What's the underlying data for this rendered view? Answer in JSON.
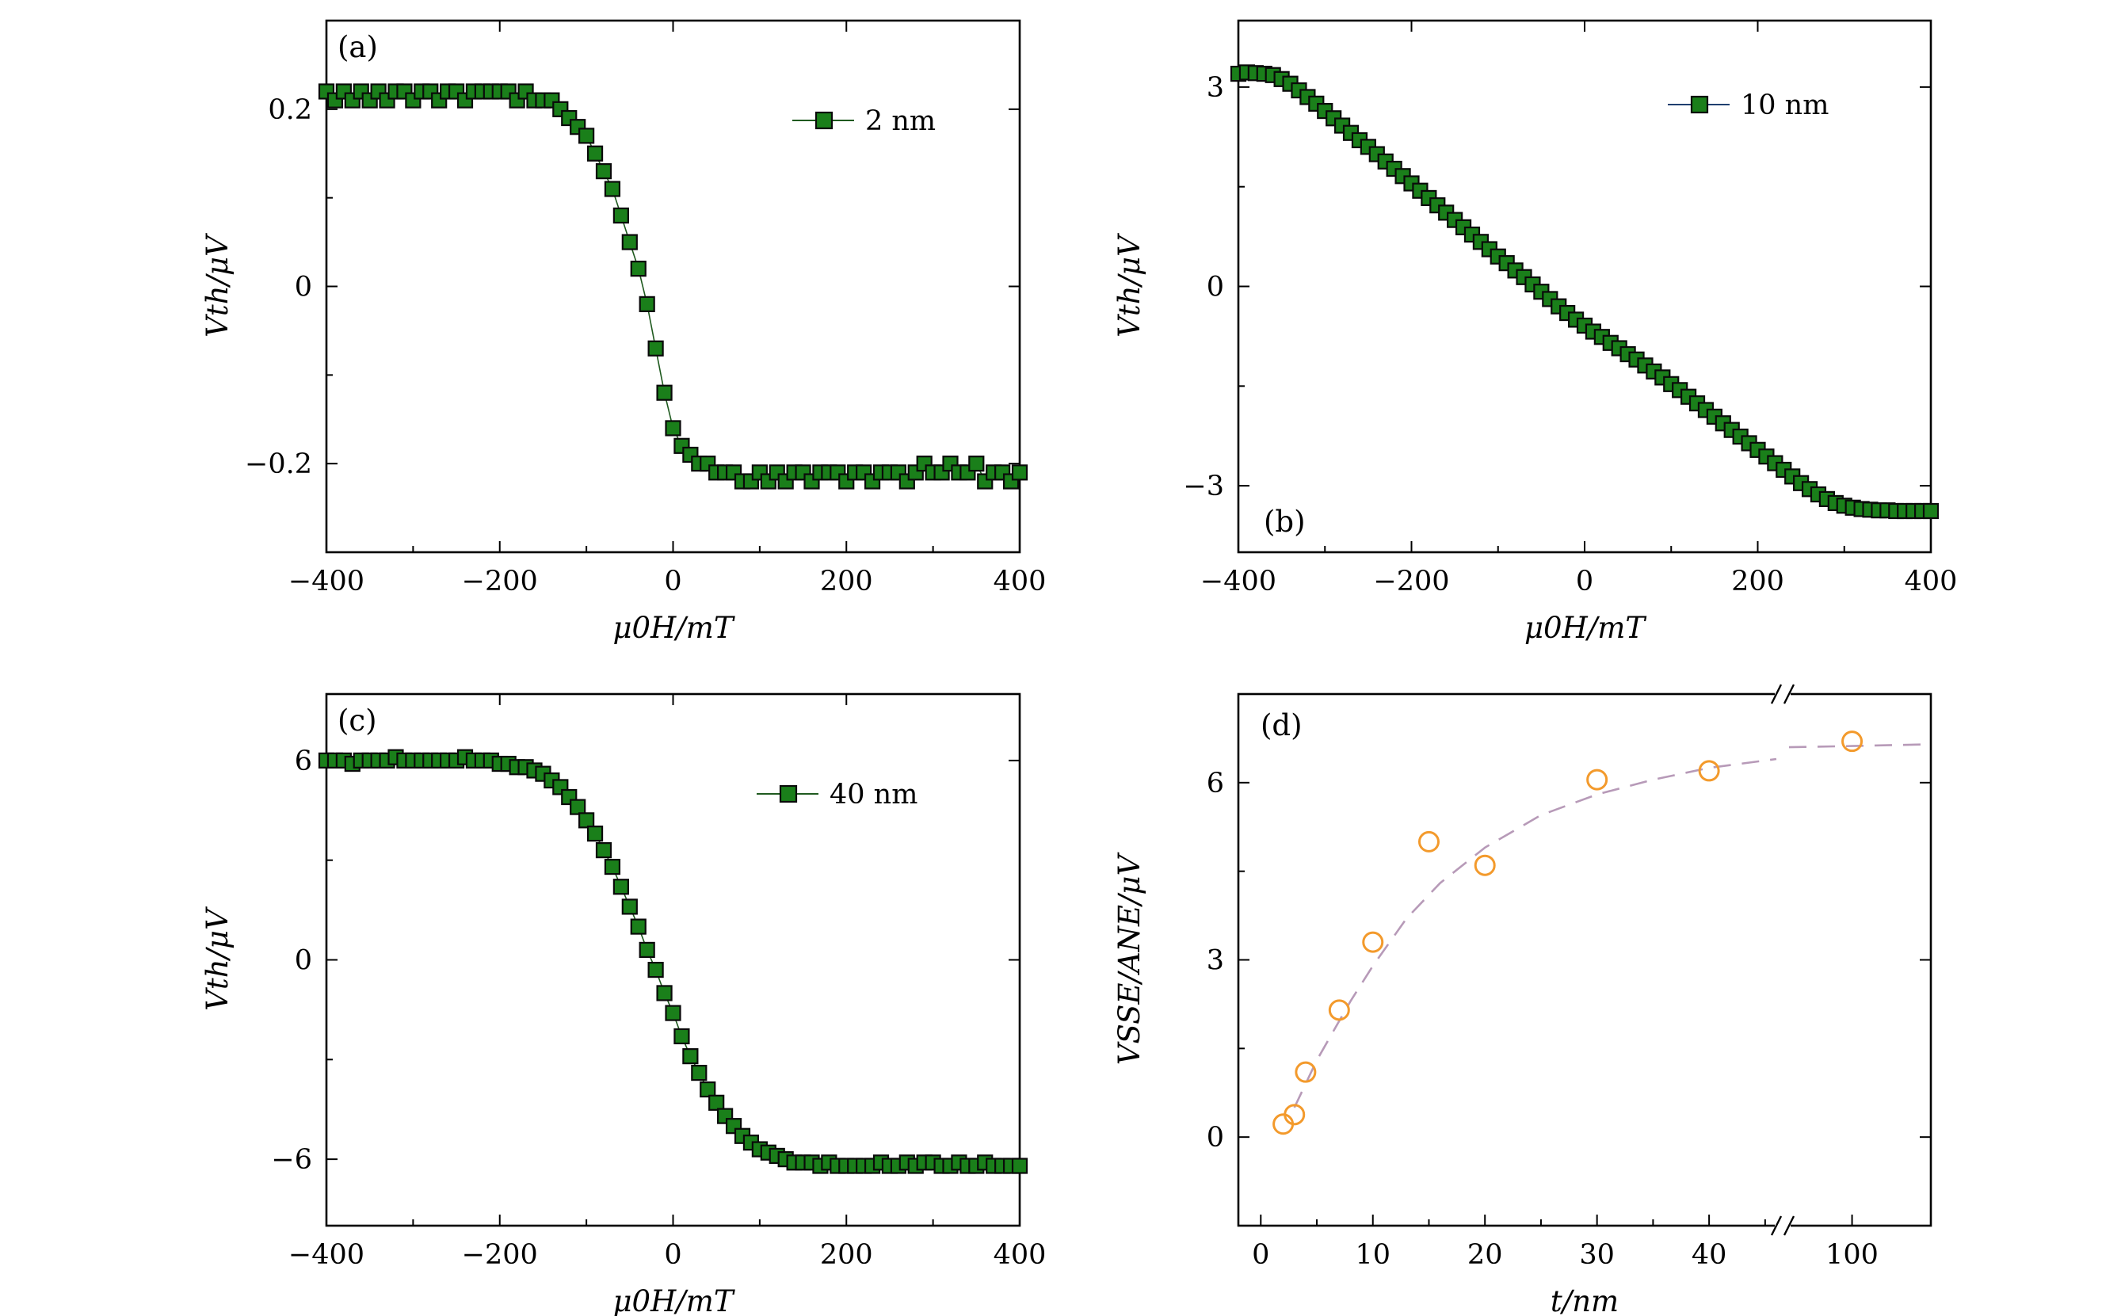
{
  "chart_data": [
    {
      "type": "line",
      "panel_label": "(a)",
      "xlabel": "μ0H/mT",
      "ylabel": "Vth/μV",
      "xlim": [
        -400,
        400
      ],
      "ylim": [
        -0.3,
        0.3
      ],
      "xticks": [
        -400,
        -200,
        0,
        200,
        400
      ],
      "xtick_labels": [
        "−400",
        "−200",
        "0",
        "200",
        "400"
      ],
      "yticks": [
        -0.2,
        0,
        0.2
      ],
      "ytick_labels": [
        "−0.2",
        "0",
        "0.2"
      ],
      "legend_position": "top-right",
      "line_color": "#1f5a1f",
      "marker_color": "#1a7f1a",
      "series": [
        {
          "name": "2 nm",
          "x": [
            -400,
            -390,
            -380,
            -370,
            -360,
            -350,
            -340,
            -330,
            -320,
            -310,
            -300,
            -290,
            -280,
            -270,
            -260,
            -250,
            -240,
            -230,
            -220,
            -210,
            -200,
            -190,
            -180,
            -170,
            -160,
            -150,
            -140,
            -130,
            -120,
            -110,
            -100,
            -90,
            -80,
            -70,
            -60,
            -50,
            -40,
            -30,
            -20,
            -10,
            0,
            10,
            20,
            30,
            40,
            50,
            60,
            70,
            80,
            90,
            100,
            110,
            120,
            130,
            140,
            150,
            160,
            170,
            180,
            190,
            200,
            210,
            220,
            230,
            240,
            250,
            260,
            270,
            280,
            290,
            300,
            310,
            320,
            330,
            340,
            350,
            360,
            370,
            380,
            390,
            400
          ],
          "y": [
            0.22,
            0.21,
            0.22,
            0.21,
            0.22,
            0.21,
            0.22,
            0.21,
            0.22,
            0.22,
            0.21,
            0.22,
            0.22,
            0.21,
            0.22,
            0.22,
            0.21,
            0.22,
            0.22,
            0.22,
            0.22,
            0.22,
            0.21,
            0.22,
            0.21,
            0.21,
            0.21,
            0.2,
            0.19,
            0.18,
            0.17,
            0.15,
            0.13,
            0.11,
            0.08,
            0.05,
            0.02,
            -0.02,
            -0.07,
            -0.12,
            -0.16,
            -0.18,
            -0.19,
            -0.2,
            -0.2,
            -0.21,
            -0.21,
            -0.21,
            -0.22,
            -0.22,
            -0.21,
            -0.22,
            -0.21,
            -0.22,
            -0.21,
            -0.21,
            -0.22,
            -0.21,
            -0.21,
            -0.21,
            -0.22,
            -0.21,
            -0.21,
            -0.22,
            -0.21,
            -0.21,
            -0.21,
            -0.22,
            -0.21,
            -0.2,
            -0.21,
            -0.21,
            -0.2,
            -0.21,
            -0.21,
            -0.2,
            -0.22,
            -0.21,
            -0.21,
            -0.22,
            -0.21
          ]
        }
      ]
    },
    {
      "type": "line",
      "panel_label": "(b)",
      "xlabel": "μ0H/mT",
      "ylabel": "Vth/μV",
      "xlim": [
        -400,
        400
      ],
      "ylim": [
        -4,
        4
      ],
      "xticks": [
        -400,
        -200,
        0,
        200,
        400
      ],
      "xtick_labels": [
        "−400",
        "−200",
        "0",
        "200",
        "400"
      ],
      "yticks": [
        -3,
        0,
        3
      ],
      "ytick_labels": [
        "−3",
        "0",
        "3"
      ],
      "legend_position": "top-right",
      "line_color": "#1f3f6f",
      "marker_color": "#1a7f1a",
      "series": [
        {
          "name": "10 nm",
          "x": [
            -400,
            -390,
            -380,
            -370,
            -360,
            -350,
            -340,
            -330,
            -320,
            -310,
            -300,
            -290,
            -280,
            -270,
            -260,
            -250,
            -240,
            -230,
            -220,
            -210,
            -200,
            -190,
            -180,
            -170,
            -160,
            -150,
            -140,
            -130,
            -120,
            -110,
            -100,
            -90,
            -80,
            -70,
            -60,
            -50,
            -40,
            -30,
            -20,
            -10,
            0,
            10,
            20,
            30,
            40,
            50,
            60,
            70,
            80,
            90,
            100,
            110,
            120,
            130,
            140,
            150,
            160,
            170,
            180,
            190,
            200,
            210,
            220,
            230,
            240,
            250,
            260,
            270,
            280,
            290,
            300,
            310,
            320,
            330,
            340,
            350,
            360,
            370,
            380,
            390,
            400
          ],
          "y": [
            3.2,
            3.22,
            3.21,
            3.2,
            3.18,
            3.12,
            3.05,
            2.95,
            2.85,
            2.75,
            2.64,
            2.53,
            2.42,
            2.31,
            2.2,
            2.1,
            1.99,
            1.88,
            1.77,
            1.66,
            1.55,
            1.44,
            1.33,
            1.22,
            1.11,
            1.0,
            0.89,
            0.78,
            0.67,
            0.56,
            0.45,
            0.35,
            0.24,
            0.14,
            0.03,
            -0.08,
            -0.19,
            -0.3,
            -0.4,
            -0.5,
            -0.59,
            -0.68,
            -0.76,
            -0.85,
            -0.93,
            -1.02,
            -1.1,
            -1.19,
            -1.28,
            -1.37,
            -1.47,
            -1.56,
            -1.66,
            -1.76,
            -1.86,
            -1.96,
            -2.06,
            -2.16,
            -2.26,
            -2.36,
            -2.46,
            -2.56,
            -2.66,
            -2.76,
            -2.86,
            -2.96,
            -3.05,
            -3.13,
            -3.2,
            -3.26,
            -3.3,
            -3.33,
            -3.35,
            -3.36,
            -3.37,
            -3.37,
            -3.38,
            -3.38,
            -3.38,
            -3.38,
            -3.38
          ]
        }
      ]
    },
    {
      "type": "line",
      "panel_label": "(c)",
      "xlabel": "μ0H/mT",
      "ylabel": "Vth/μV",
      "xlim": [
        -400,
        400
      ],
      "ylim": [
        -8,
        8
      ],
      "xticks": [
        -400,
        -200,
        0,
        200,
        400
      ],
      "xtick_labels": [
        "−400",
        "−200",
        "0",
        "200",
        "400"
      ],
      "yticks": [
        -6,
        0,
        6
      ],
      "ytick_labels": [
        "−6",
        "0",
        "6"
      ],
      "legend_position": "top-right",
      "line_color": "#1f5a1f",
      "marker_color": "#1a7f1a",
      "series": [
        {
          "name": "40 nm",
          "x": [
            -400,
            -390,
            -380,
            -370,
            -360,
            -350,
            -340,
            -330,
            -320,
            -310,
            -300,
            -290,
            -280,
            -270,
            -260,
            -250,
            -240,
            -230,
            -220,
            -210,
            -200,
            -190,
            -180,
            -170,
            -160,
            -150,
            -140,
            -130,
            -120,
            -110,
            -100,
            -90,
            -80,
            -70,
            -60,
            -50,
            -40,
            -30,
            -20,
            -10,
            0,
            10,
            20,
            30,
            40,
            50,
            60,
            70,
            80,
            90,
            100,
            110,
            120,
            130,
            140,
            150,
            160,
            170,
            180,
            190,
            200,
            210,
            220,
            230,
            240,
            250,
            260,
            270,
            280,
            290,
            300,
            310,
            320,
            330,
            340,
            350,
            360,
            370,
            380,
            390,
            400
          ],
          "y": [
            6.0,
            6.0,
            6.0,
            5.9,
            6.0,
            6.0,
            6.0,
            6.0,
            6.1,
            6.0,
            6.0,
            6.0,
            6.0,
            6.0,
            6.0,
            6.0,
            6.1,
            6.0,
            6.0,
            6.0,
            5.9,
            5.9,
            5.8,
            5.8,
            5.7,
            5.6,
            5.4,
            5.2,
            4.9,
            4.6,
            4.2,
            3.8,
            3.3,
            2.8,
            2.2,
            1.6,
            1.0,
            0.3,
            -0.3,
            -1.0,
            -1.6,
            -2.3,
            -2.9,
            -3.4,
            -3.9,
            -4.3,
            -4.7,
            -5.0,
            -5.3,
            -5.5,
            -5.7,
            -5.8,
            -5.9,
            -6.0,
            -6.1,
            -6.1,
            -6.1,
            -6.2,
            -6.1,
            -6.2,
            -6.2,
            -6.2,
            -6.2,
            -6.2,
            -6.1,
            -6.2,
            -6.2,
            -6.1,
            -6.2,
            -6.1,
            -6.1,
            -6.2,
            -6.2,
            -6.1,
            -6.2,
            -6.2,
            -6.1,
            -6.2,
            -6.2,
            -6.2,
            -6.2
          ]
        }
      ]
    },
    {
      "type": "scatter",
      "panel_label": "(d)",
      "xlabel": "t/nm",
      "ylabel": "VSSE/ANE/μV",
      "ylim": [
        -1.5,
        7.5
      ],
      "xticks": [
        0,
        10,
        20,
        30,
        40,
        100
      ],
      "xtick_labels": [
        "0",
        "10",
        "20",
        "30",
        "40",
        "100"
      ],
      "yticks": [
        0,
        3,
        6
      ],
      "ytick_labels": [
        "0",
        "3",
        "6"
      ],
      "axis_break": {
        "left_segment": [
          -2,
          46
        ],
        "right_segment": [
          96,
          105
        ]
      },
      "marker_color": "#f39a2c",
      "fit_color": "#b79ab8",
      "series": [
        {
          "name": "",
          "x": [
            2,
            3,
            4,
            7,
            10,
            15,
            20,
            30,
            40,
            100
          ],
          "y": [
            0.22,
            0.38,
            1.1,
            2.15,
            3.3,
            5.0,
            4.6,
            6.05,
            6.2,
            6.7
          ]
        }
      ],
      "fit": {
        "x": [
          3,
          5,
          8,
          10,
          13,
          16,
          20,
          25,
          30,
          35,
          40,
          46,
          96,
          100,
          105
        ],
        "y": [
          0.5,
          1.3,
          2.3,
          2.9,
          3.7,
          4.3,
          4.9,
          5.45,
          5.8,
          6.05,
          6.25,
          6.4,
          6.6,
          6.62,
          6.65
        ]
      }
    }
  ]
}
